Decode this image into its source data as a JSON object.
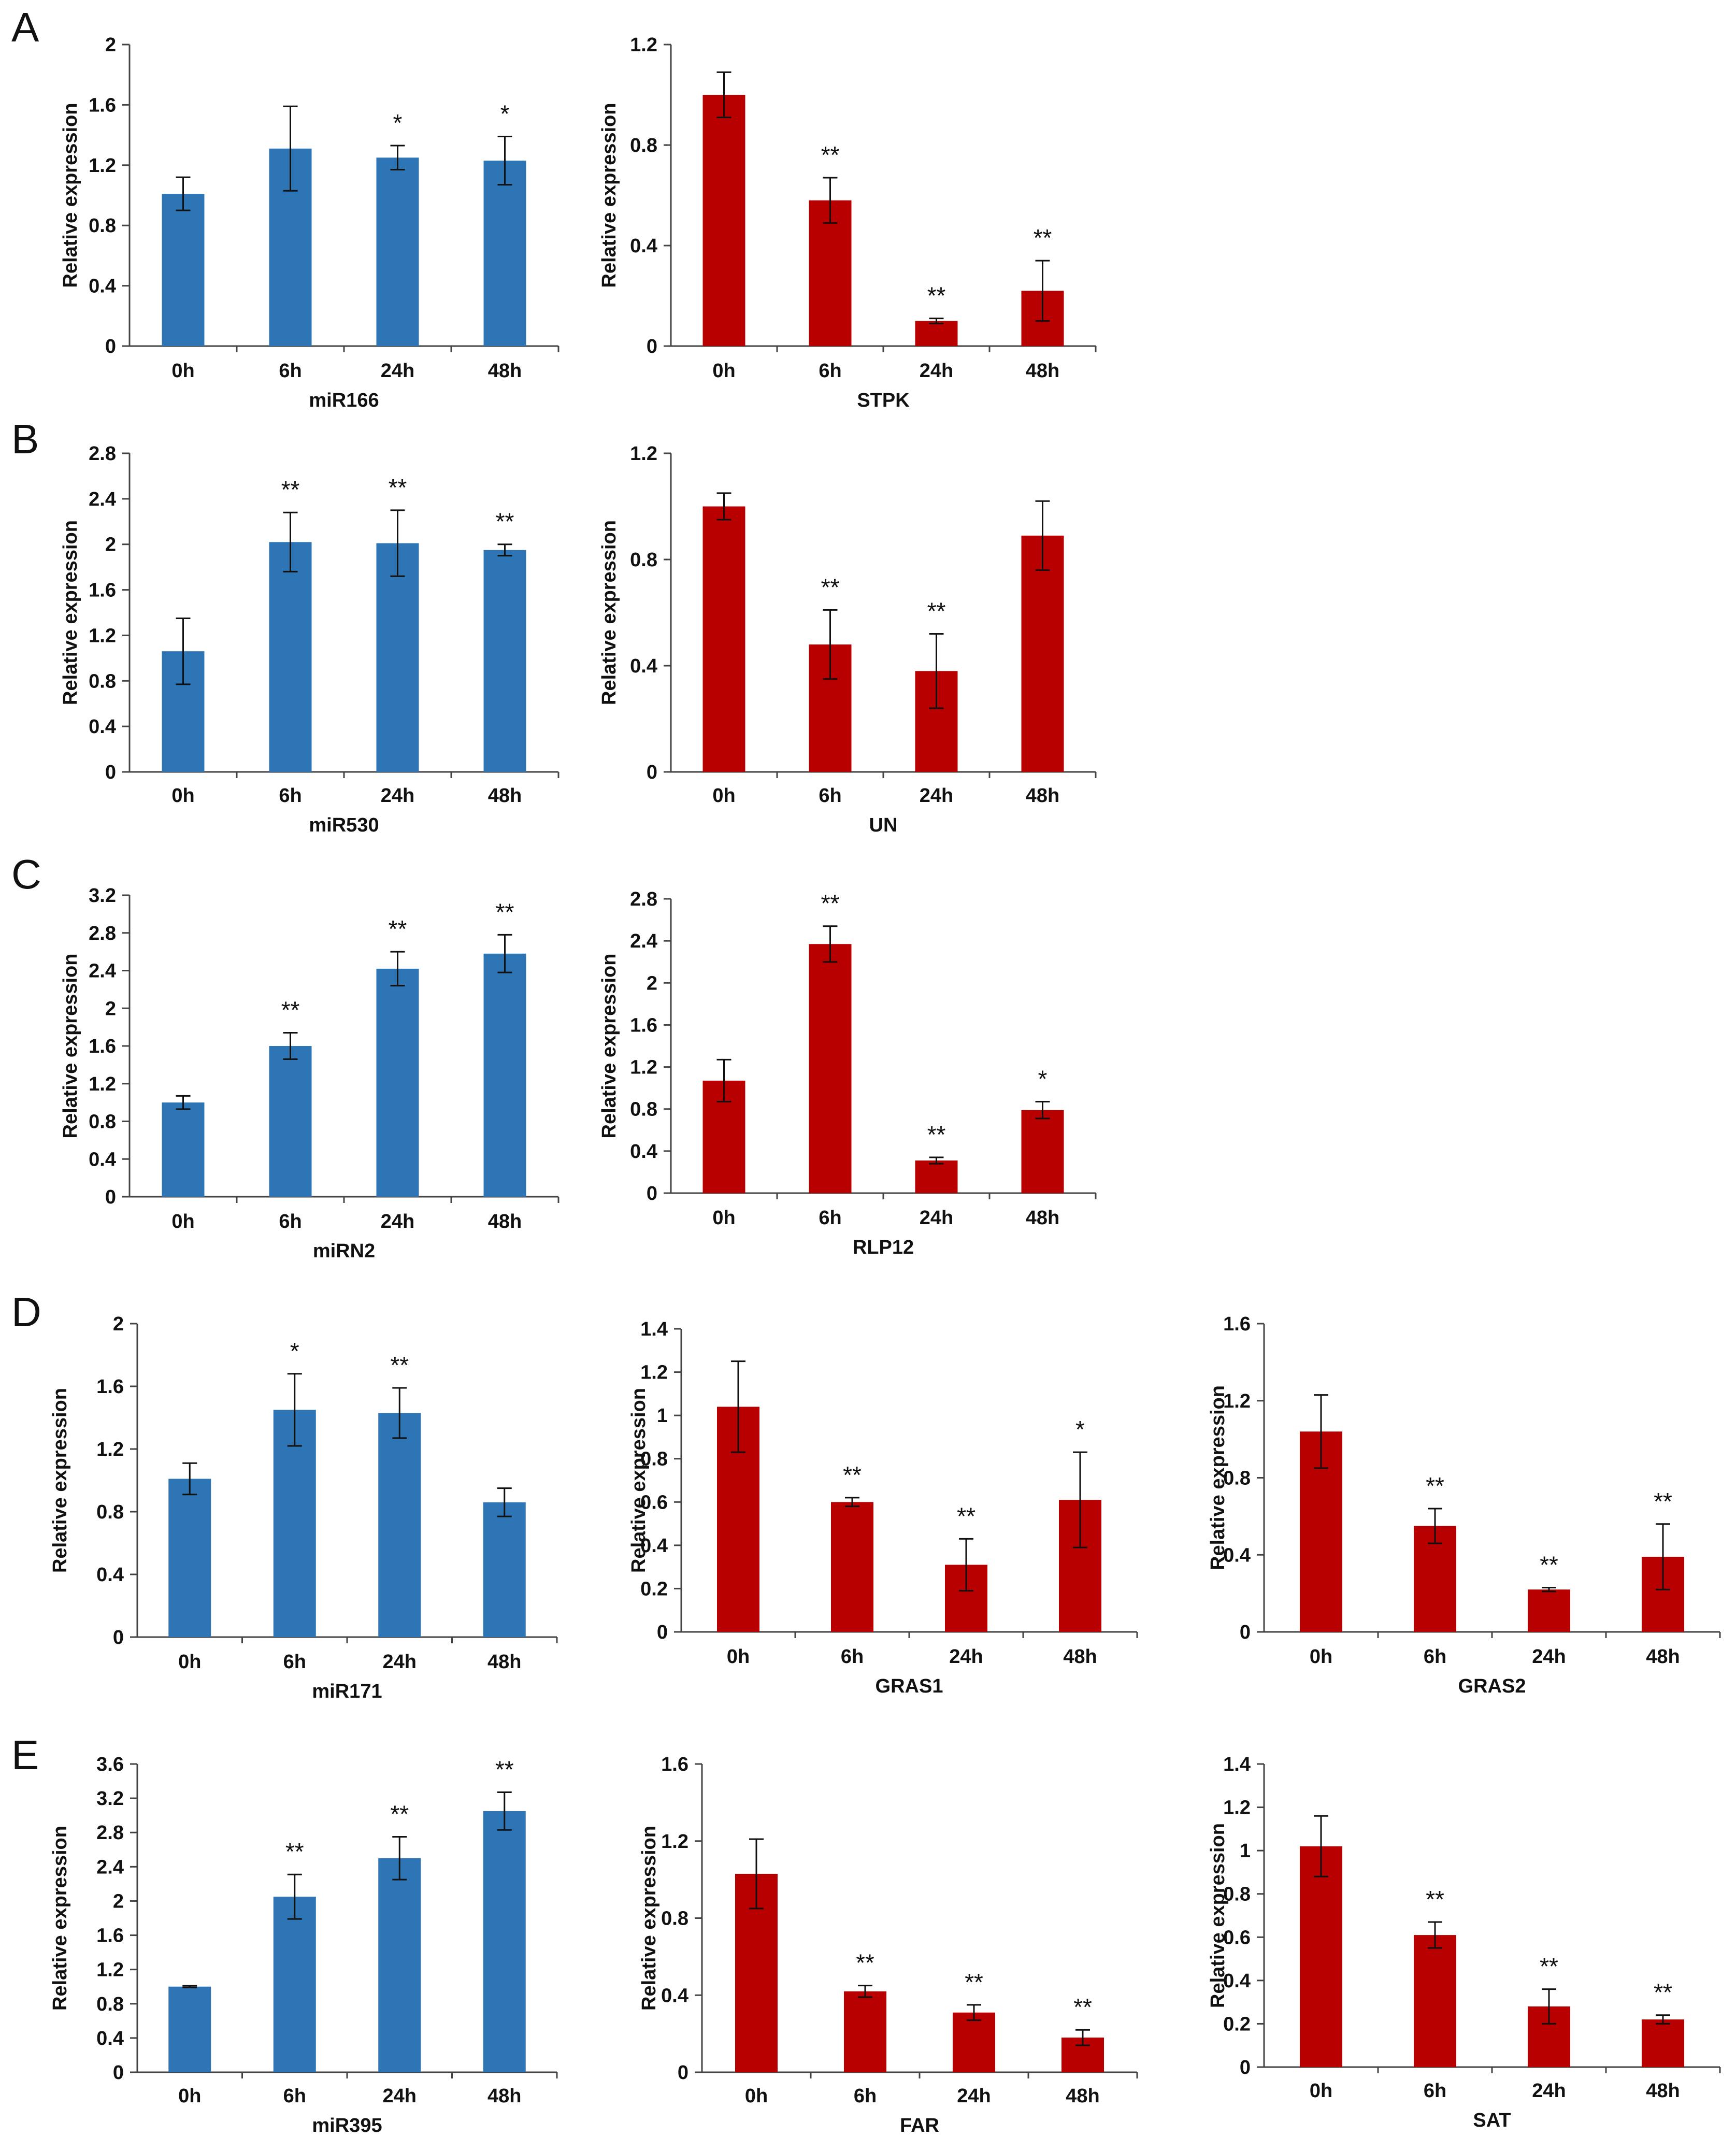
{
  "figure": {
    "panel_letters": [
      "A",
      "B",
      "C",
      "D",
      "E"
    ]
  },
  "colors": {
    "blue": "#2e75b6",
    "red": "#b80000",
    "axis": "#444444",
    "errorbar": "#111111"
  },
  "chart_data": [
    {
      "type": "bar",
      "panel": "A",
      "title": "",
      "xlabel": "miR166",
      "ylabel": "Relative expression",
      "categories": [
        "0h",
        "6h",
        "24h",
        "48h"
      ],
      "values": [
        1.01,
        1.31,
        1.25,
        1.23
      ],
      "errors": [
        0.11,
        0.28,
        0.08,
        0.16
      ],
      "significance": [
        "",
        "",
        "*",
        "*"
      ],
      "ylim": [
        0,
        2
      ],
      "yticks": [
        0,
        0.4,
        0.8,
        1.2,
        1.6,
        2
      ],
      "ytick_labels": [
        "0",
        "0.4",
        "0.8",
        "1.2",
        "1.6",
        "2"
      ],
      "color": "blue"
    },
    {
      "type": "bar",
      "panel": "A",
      "title": "",
      "xlabel": "STPK",
      "ylabel": "Relative expression",
      "categories": [
        "0h",
        "6h",
        "24h",
        "48h"
      ],
      "values": [
        1.0,
        0.58,
        0.1,
        0.22
      ],
      "errors": [
        0.09,
        0.09,
        0.01,
        0.12
      ],
      "significance": [
        "",
        "**",
        "**",
        "**"
      ],
      "ylim": [
        0,
        1.2
      ],
      "yticks": [
        0,
        0.4,
        0.8,
        1.2
      ],
      "ytick_labels": [
        "0",
        "0.4",
        "0.8",
        "1.2"
      ],
      "color": "red"
    },
    {
      "type": "bar",
      "panel": "B",
      "title": "",
      "xlabel": "miR530",
      "ylabel": "Relative expression",
      "categories": [
        "0h",
        "6h",
        "24h",
        "48h"
      ],
      "values": [
        1.06,
        2.02,
        2.01,
        1.95
      ],
      "errors": [
        0.29,
        0.26,
        0.29,
        0.05
      ],
      "significance": [
        "",
        "**",
        "**",
        "**"
      ],
      "ylim": [
        0,
        2.8
      ],
      "yticks": [
        0,
        0.4,
        0.8,
        1.2,
        1.6,
        2,
        2.4,
        2.8
      ],
      "ytick_labels": [
        "0",
        "0.4",
        "0.8",
        "1.2",
        "1.6",
        "2",
        "2.4",
        "2.8"
      ],
      "color": "blue"
    },
    {
      "type": "bar",
      "panel": "B",
      "title": "",
      "xlabel": "UN",
      "ylabel": "Relative expression",
      "categories": [
        "0h",
        "6h",
        "24h",
        "48h"
      ],
      "values": [
        1.0,
        0.48,
        0.38,
        0.89
      ],
      "errors": [
        0.05,
        0.13,
        0.14,
        0.13
      ],
      "significance": [
        "",
        "**",
        "**",
        ""
      ],
      "ylim": [
        0,
        1.2
      ],
      "yticks": [
        0,
        0.4,
        0.8,
        1.2
      ],
      "ytick_labels": [
        "0",
        "0.4",
        "0.8",
        "1.2"
      ],
      "color": "red"
    },
    {
      "type": "bar",
      "panel": "C",
      "title": "",
      "xlabel": "miRN2",
      "ylabel": "Relative expression",
      "categories": [
        "0h",
        "6h",
        "24h",
        "48h"
      ],
      "values": [
        1.0,
        1.6,
        2.42,
        2.58
      ],
      "errors": [
        0.07,
        0.14,
        0.18,
        0.2
      ],
      "significance": [
        "",
        "**",
        "**",
        "**"
      ],
      "ylim": [
        0,
        3.2
      ],
      "yticks": [
        0,
        0.4,
        0.8,
        1.2,
        1.6,
        2,
        2.4,
        2.8,
        3.2
      ],
      "ytick_labels": [
        "0",
        "0.4",
        "0.8",
        "1.2",
        "1.6",
        "2",
        "2.4",
        "2.8",
        "3.2"
      ],
      "color": "blue"
    },
    {
      "type": "bar",
      "panel": "C",
      "title": "",
      "xlabel": "RLP12",
      "ylabel": "Relative expression",
      "categories": [
        "0h",
        "6h",
        "24h",
        "48h"
      ],
      "values": [
        1.07,
        2.37,
        0.31,
        0.79
      ],
      "errors": [
        0.2,
        0.17,
        0.03,
        0.08
      ],
      "significance": [
        "",
        "**",
        "**",
        "*"
      ],
      "ylim": [
        0,
        2.8
      ],
      "yticks": [
        0,
        0.4,
        0.8,
        1.2,
        1.6,
        2,
        2.4,
        2.8
      ],
      "ytick_labels": [
        "0",
        "0.4",
        "0.8",
        "1.2",
        "1.6",
        "2",
        "2.4",
        "2.8"
      ],
      "color": "red"
    },
    {
      "type": "bar",
      "panel": "D",
      "title": "",
      "xlabel": "miR171",
      "ylabel": "Relative expression",
      "categories": [
        "0h",
        "6h",
        "24h",
        "48h"
      ],
      "values": [
        1.01,
        1.45,
        1.43,
        0.86
      ],
      "errors": [
        0.1,
        0.23,
        0.16,
        0.09
      ],
      "significance": [
        "",
        "*",
        "**",
        ""
      ],
      "ylim": [
        0,
        2
      ],
      "yticks": [
        0,
        0.4,
        0.8,
        1.2,
        1.6,
        2
      ],
      "ytick_labels": [
        "0",
        "0.4",
        "0.8",
        "1.2",
        "1.6",
        "2"
      ],
      "color": "blue"
    },
    {
      "type": "bar",
      "panel": "D",
      "title": "",
      "xlabel": "GRAS1",
      "ylabel": "Relative expression",
      "categories": [
        "0h",
        "6h",
        "24h",
        "48h"
      ],
      "values": [
        1.04,
        0.6,
        0.31,
        0.61
      ],
      "errors": [
        0.21,
        0.02,
        0.12,
        0.22
      ],
      "significance": [
        "",
        "**",
        "**",
        "*"
      ],
      "ylim": [
        0,
        1.4
      ],
      "yticks": [
        0,
        0.2,
        0.4,
        0.6,
        0.8,
        1,
        1.2,
        1.4
      ],
      "ytick_labels": [
        "0",
        "0.2",
        "0.4",
        "0.6",
        "0.8",
        "1",
        "1.2",
        "1.4"
      ],
      "color": "red"
    },
    {
      "type": "bar",
      "panel": "D",
      "title": "",
      "xlabel": "GRAS2",
      "ylabel": "Relative expression",
      "categories": [
        "0h",
        "6h",
        "24h",
        "48h"
      ],
      "values": [
        1.04,
        0.55,
        0.22,
        0.39
      ],
      "errors": [
        0.19,
        0.09,
        0.01,
        0.17
      ],
      "significance": [
        "",
        "**",
        "**",
        "**"
      ],
      "ylim": [
        0,
        1.6
      ],
      "yticks": [
        0,
        0.4,
        0.8,
        1.2,
        1.6
      ],
      "ytick_labels": [
        "0",
        "0.4",
        "0.8",
        "1.2",
        "1.6"
      ],
      "color": "red"
    },
    {
      "type": "bar",
      "panel": "E",
      "title": "",
      "xlabel": "miR395",
      "ylabel": "Relative expression",
      "categories": [
        "0h",
        "6h",
        "24h",
        "48h"
      ],
      "values": [
        1.0,
        2.05,
        2.5,
        3.05
      ],
      "errors": [
        0.01,
        0.26,
        0.25,
        0.22
      ],
      "significance": [
        "",
        "**",
        "**",
        "**"
      ],
      "ylim": [
        0,
        3.6
      ],
      "yticks": [
        0,
        0.4,
        0.8,
        1.2,
        1.6,
        2,
        2.4,
        2.8,
        3.2,
        3.6
      ],
      "ytick_labels": [
        "0",
        "0.4",
        "0.8",
        "1.2",
        "1.6",
        "2",
        "2.4",
        "2.8",
        "3.2",
        "3.6"
      ],
      "color": "blue"
    },
    {
      "type": "bar",
      "panel": "E",
      "title": "",
      "xlabel": "FAR",
      "ylabel": "Relative expression",
      "categories": [
        "0h",
        "6h",
        "24h",
        "48h"
      ],
      "values": [
        1.03,
        0.42,
        0.31,
        0.18
      ],
      "errors": [
        0.18,
        0.03,
        0.04,
        0.04
      ],
      "significance": [
        "",
        "**",
        "**",
        "**"
      ],
      "ylim": [
        0,
        1.6
      ],
      "yticks": [
        0,
        0.4,
        0.8,
        1.2,
        1.6
      ],
      "ytick_labels": [
        "0",
        "0.4",
        "0.8",
        "1.2",
        "1.6"
      ],
      "color": "red"
    },
    {
      "type": "bar",
      "panel": "E",
      "title": "",
      "xlabel": "SAT",
      "ylabel": "Relative expression",
      "categories": [
        "0h",
        "6h",
        "24h",
        "48h"
      ],
      "values": [
        1.02,
        0.61,
        0.28,
        0.22
      ],
      "errors": [
        0.14,
        0.06,
        0.08,
        0.02
      ],
      "significance": [
        "",
        "**",
        "**",
        "**"
      ],
      "ylim": [
        0,
        1.4
      ],
      "yticks": [
        0,
        0.2,
        0.4,
        0.6,
        0.8,
        1,
        1.2,
        1.4
      ],
      "ytick_labels": [
        "0",
        "0.2",
        "0.4",
        "0.6",
        "0.8",
        "1",
        "1.2",
        "1.4"
      ],
      "color": "red"
    }
  ]
}
